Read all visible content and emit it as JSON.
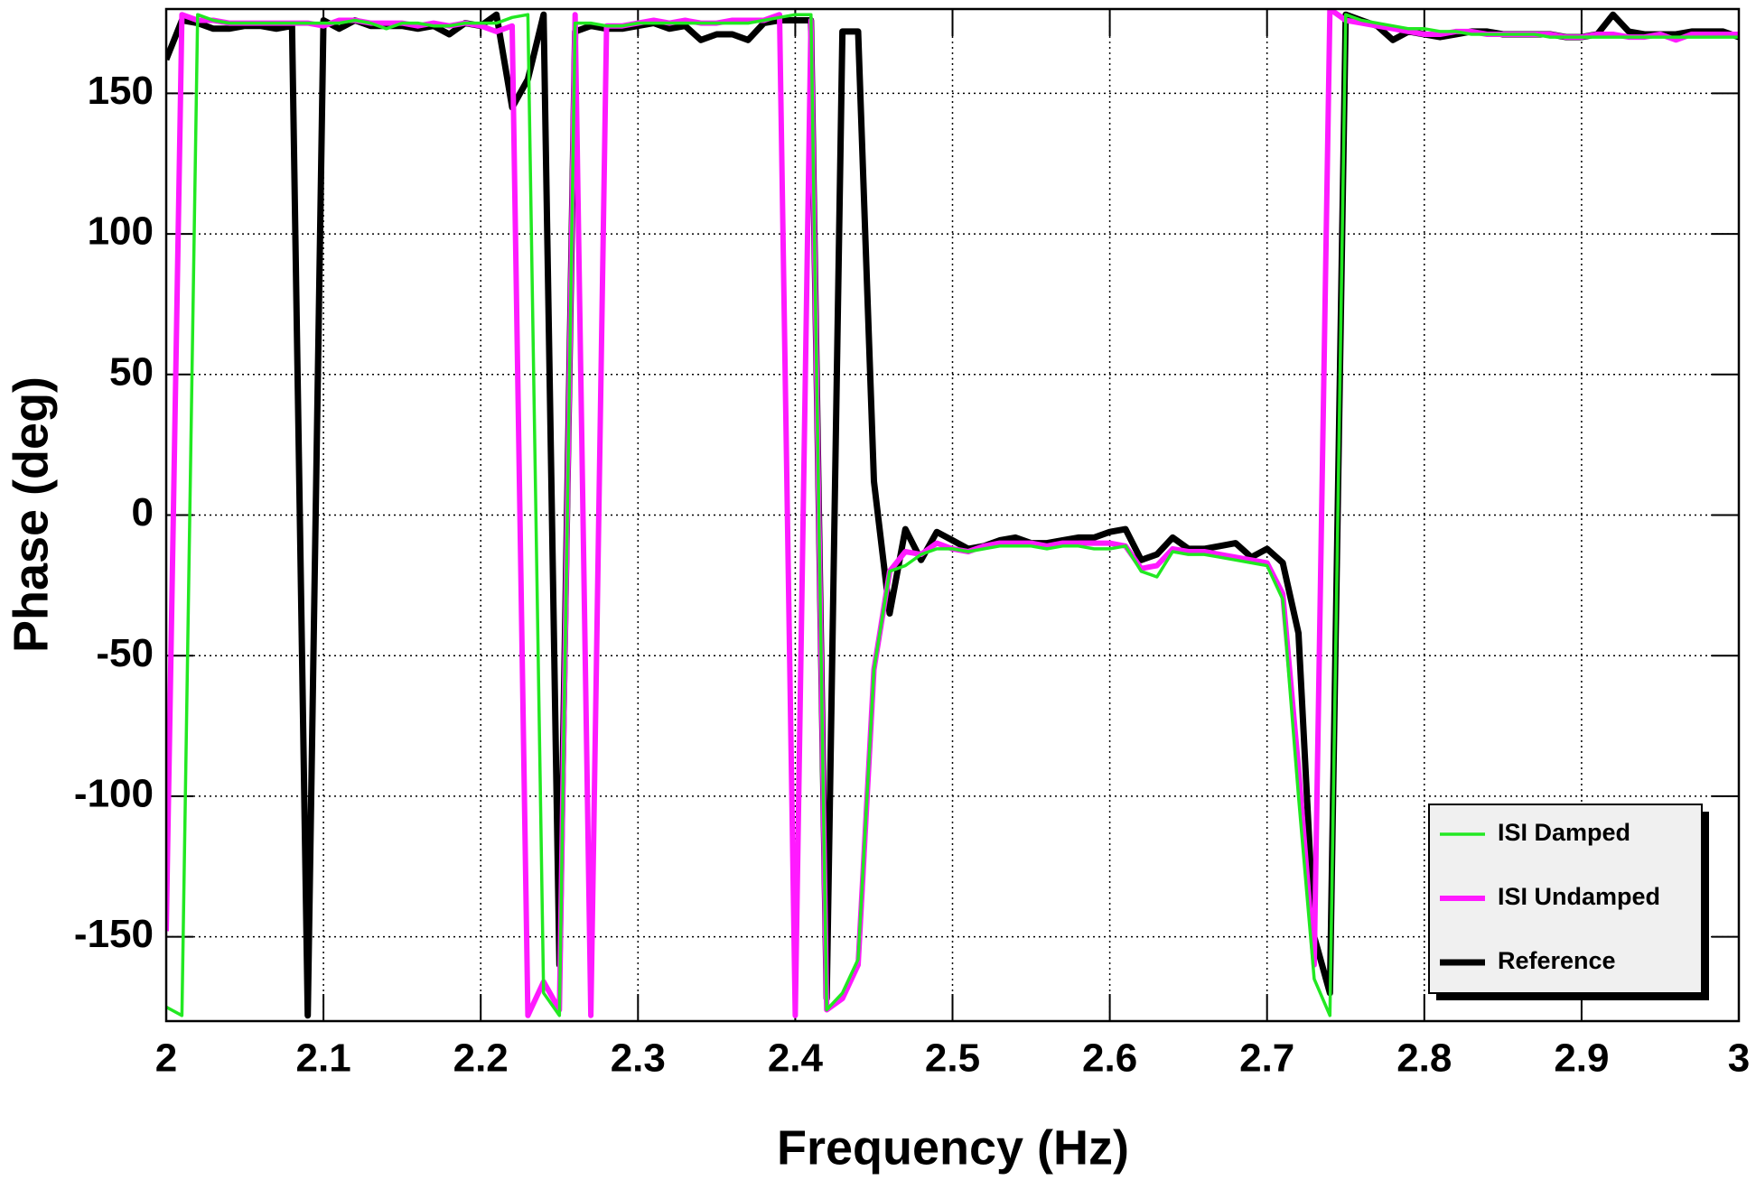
{
  "chart_data": {
    "type": "line",
    "x_label": "Frequency (Hz)",
    "y_label": "Phase (deg)",
    "xlim": [
      2,
      3
    ],
    "ylim": [
      -180,
      180
    ],
    "xticks": [
      2,
      2.1,
      2.2,
      2.3,
      2.4,
      2.5,
      2.6,
      2.7,
      2.8,
      2.9,
      3
    ],
    "yticks": [
      -150,
      -100,
      -50,
      0,
      50,
      100,
      150
    ],
    "grid": true,
    "legend": "lower right",
    "x": [
      2,
      2.01,
      2.02,
      2.03,
      2.04,
      2.05,
      2.06,
      2.07,
      2.08,
      2.09,
      2.1,
      2.11,
      2.12,
      2.13,
      2.14,
      2.15,
      2.16,
      2.17,
      2.18,
      2.19,
      2.2,
      2.21,
      2.22,
      2.23,
      2.24,
      2.25,
      2.26,
      2.27,
      2.28,
      2.29,
      2.3,
      2.31,
      2.32,
      2.33,
      2.34,
      2.35,
      2.36,
      2.37,
      2.38,
      2.39,
      2.4,
      2.41,
      2.42,
      2.43,
      2.44,
      2.45,
      2.46,
      2.47,
      2.48,
      2.49,
      2.5,
      2.51,
      2.52,
      2.53,
      2.54,
      2.55,
      2.56,
      2.57,
      2.58,
      2.59,
      2.6,
      2.61,
      2.62,
      2.63,
      2.64,
      2.65,
      2.66,
      2.67,
      2.68,
      2.69,
      2.7,
      2.71,
      2.72,
      2.73,
      2.74,
      2.75,
      2.76,
      2.77,
      2.78,
      2.79,
      2.8,
      2.81,
      2.82,
      2.83,
      2.84,
      2.85,
      2.86,
      2.87,
      2.88,
      2.89,
      2.9,
      2.91,
      2.92,
      2.93,
      2.94,
      2.95,
      2.96,
      2.97,
      2.98,
      2.99,
      3
    ],
    "series": [
      {
        "name": "ISI Damped",
        "color": "#22e822",
        "values": [
          -175,
          -178,
          178,
          176,
          175,
          175,
          175,
          175,
          175,
          175,
          175,
          175,
          176,
          175,
          173,
          175,
          175,
          174,
          174,
          175,
          175,
          175,
          177,
          178,
          -170,
          -178,
          175,
          175,
          174,
          174,
          175,
          175,
          175,
          175,
          175,
          175,
          175,
          175,
          176,
          177,
          178,
          178,
          -176,
          -170,
          -158,
          -55,
          -20,
          -18,
          -14,
          -12,
          -12,
          -13,
          -12,
          -11,
          -11,
          -11,
          -12,
          -11,
          -11,
          -12,
          -12,
          -11,
          -20,
          -22,
          -13,
          -14,
          -14,
          -15,
          -16,
          -17,
          -18,
          -30,
          -100,
          -165,
          -178,
          178,
          176,
          175,
          174,
          173,
          173,
          172,
          172,
          171,
          171,
          171,
          171,
          171,
          170,
          170,
          170,
          170,
          170,
          170,
          170,
          170,
          170,
          170,
          170,
          170,
          170
        ]
      },
      {
        "name": "ISI Undamped",
        "color": "#ff1aff",
        "values": [
          -148,
          178,
          176,
          176,
          175,
          175,
          175,
          175,
          175,
          175,
          174,
          176,
          176,
          175,
          175,
          175,
          174,
          175,
          174,
          175,
          174,
          172,
          174,
          -178,
          -166,
          -176,
          178,
          -178,
          174,
          174,
          175,
          176,
          175,
          176,
          175,
          175,
          176,
          176,
          176,
          178,
          -178,
          176,
          -176,
          -172,
          -160,
          -55,
          -20,
          -13,
          -14,
          -10,
          -12,
          -13,
          -11,
          -10,
          -10,
          -10,
          -11,
          -10,
          -10,
          -10,
          -10,
          -11,
          -19,
          -18,
          -12,
          -13,
          -13,
          -14,
          -15,
          -16,
          -17,
          -28,
          -90,
          -160,
          180,
          176,
          175,
          174,
          173,
          172,
          171,
          171,
          172,
          172,
          171,
          171,
          171,
          171,
          171,
          170,
          170,
          171,
          171,
          170,
          170,
          171,
          169,
          171,
          171,
          171,
          171
        ]
      },
      {
        "name": "Reference",
        "color": "#000000",
        "values": [
          162,
          176,
          175,
          173,
          173,
          174,
          174,
          173,
          174,
          -178,
          176,
          173,
          176,
          174,
          174,
          174,
          173,
          174,
          171,
          175,
          174,
          178,
          145,
          155,
          178,
          -160,
          172,
          174,
          173,
          173,
          174,
          175,
          173,
          174,
          169,
          171,
          171,
          169,
          175,
          176,
          176,
          176,
          -172,
          172,
          172,
          12,
          -35,
          -5,
          -16,
          -6,
          -9,
          -12,
          -11,
          -9,
          -8,
          -10,
          -10,
          -9,
          -8,
          -8,
          -6,
          -5,
          -16,
          -14,
          -8,
          -12,
          -12,
          -11,
          -10,
          -15,
          -12,
          -17,
          -42,
          -150,
          -170,
          178,
          176,
          174,
          169,
          172,
          171,
          170,
          171,
          172,
          172,
          171,
          171,
          171,
          171,
          170,
          170,
          171,
          178,
          172,
          171,
          171,
          171,
          172,
          172,
          172,
          170
        ]
      }
    ]
  }
}
